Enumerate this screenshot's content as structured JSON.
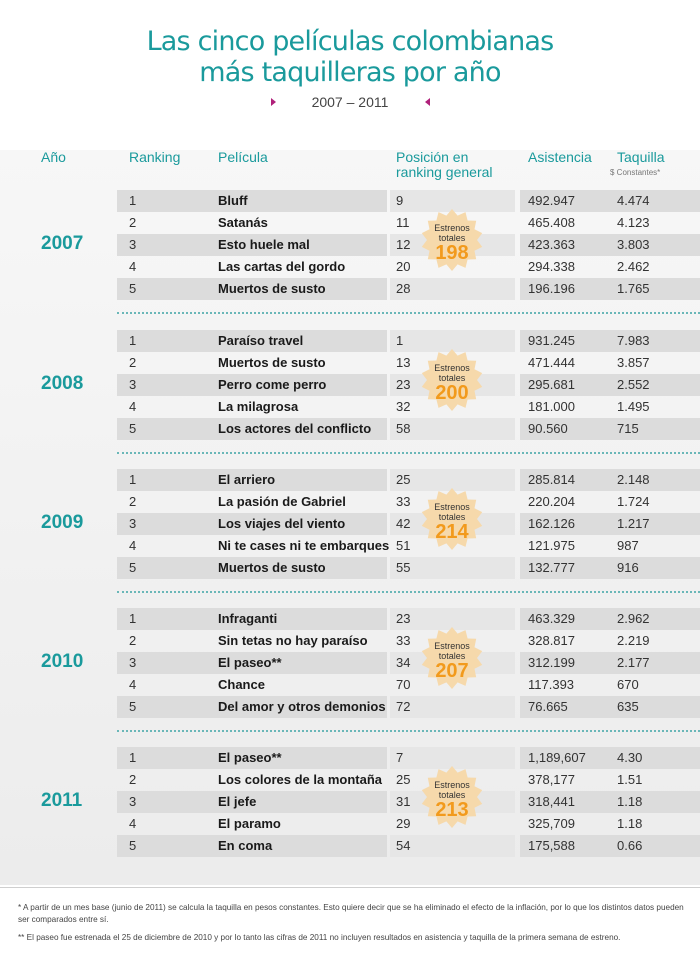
{
  "title_line1": "Las cinco películas colombianas",
  "title_line2": "más taquilleras por año",
  "subtitle": "2007 – 2011",
  "headers": {
    "year": "Año",
    "ranking": "Ranking",
    "movie": "Película",
    "position_1": "Posición en",
    "position_2": "ranking general",
    "attendance": "Asistencia",
    "box_office": "Taquilla",
    "box_office_sub": "$ Constantes*"
  },
  "badge_label_1": "Estrenos",
  "badge_label_2": "totales",
  "years": [
    {
      "year": "2007",
      "releases": "198",
      "rows": [
        {
          "rank": "1",
          "movie": "Bluff",
          "position": "9",
          "attendance": "492.947",
          "box_office": "4.474"
        },
        {
          "rank": "2",
          "movie": "Satanás",
          "position": "11",
          "attendance": "465.408",
          "box_office": "4.123"
        },
        {
          "rank": "3",
          "movie": "Esto huele mal",
          "position": "12",
          "attendance": "423.363",
          "box_office": "3.803"
        },
        {
          "rank": "4",
          "movie": "Las cartas del gordo",
          "position": "20",
          "attendance": "294.338",
          "box_office": "2.462"
        },
        {
          "rank": "5",
          "movie": "Muertos de susto",
          "position": "28",
          "attendance": "196.196",
          "box_office": "1.765"
        }
      ]
    },
    {
      "year": "2008",
      "releases": "200",
      "rows": [
        {
          "rank": "1",
          "movie": "Paraíso travel",
          "position": "1",
          "attendance": "931.245",
          "box_office": "7.983"
        },
        {
          "rank": "2",
          "movie": "Muertos de susto",
          "position": "13",
          "attendance": "471.444",
          "box_office": "3.857"
        },
        {
          "rank": "3",
          "movie": "Perro come perro",
          "position": "23",
          "attendance": "295.681",
          "box_office": "2.552"
        },
        {
          "rank": "4",
          "movie": "La milagrosa",
          "position": "32",
          "attendance": "181.000",
          "box_office": "1.495"
        },
        {
          "rank": "5",
          "movie": "Los actores del conflicto",
          "position": "58",
          "attendance": "90.560",
          "box_office": "715"
        }
      ]
    },
    {
      "year": "2009",
      "releases": "214",
      "rows": [
        {
          "rank": "1",
          "movie": "El arriero",
          "position": "25",
          "attendance": "285.814",
          "box_office": "2.148"
        },
        {
          "rank": "2",
          "movie": "La pasión de Gabriel",
          "position": "33",
          "attendance": "220.204",
          "box_office": "1.724"
        },
        {
          "rank": "3",
          "movie": "Los viajes del viento",
          "position": "42",
          "attendance": "162.126",
          "box_office": "1.217"
        },
        {
          "rank": "4",
          "movie": "Ni te cases ni te embarques",
          "position": "51",
          "attendance": "121.975",
          "box_office": "987"
        },
        {
          "rank": "5",
          "movie": "Muertos de susto",
          "position": "55",
          "attendance": "132.777",
          "box_office": "916"
        }
      ]
    },
    {
      "year": "2010",
      "releases": "207",
      "rows": [
        {
          "rank": "1",
          "movie": "Infraganti",
          "position": "23",
          "attendance": "463.329",
          "box_office": "2.962"
        },
        {
          "rank": "2",
          "movie": "Sin tetas no hay paraíso",
          "position": "33",
          "attendance": "328.817",
          "box_office": "2.219"
        },
        {
          "rank": "3",
          "movie": "El paseo**",
          "position": "34",
          "attendance": "312.199",
          "box_office": "2.177"
        },
        {
          "rank": "4",
          "movie": "Chance",
          "position": "70",
          "attendance": "117.393",
          "box_office": "670"
        },
        {
          "rank": "5",
          "movie": "Del amor y otros demonios",
          "position": "72",
          "attendance": "76.665",
          "box_office": "635"
        }
      ]
    },
    {
      "year": "2011",
      "releases": "213",
      "rows": [
        {
          "rank": "1",
          "movie": "El paseo**",
          "position": "7",
          "attendance": "1,189,607",
          "box_office": "4.30"
        },
        {
          "rank": "2",
          "movie": "Los colores de la montaña",
          "position": "25",
          "attendance": "378,177",
          "box_office": "1.51"
        },
        {
          "rank": "3",
          "movie": "El jefe",
          "position": "31",
          "attendance": "318,441",
          "box_office": "1.18"
        },
        {
          "rank": "4",
          "movie": "El paramo",
          "position": "29",
          "attendance": "325,709",
          "box_office": "1.18"
        },
        {
          "rank": "5",
          "movie": "En coma",
          "position": "54",
          "attendance": "175,588",
          "box_office": "0.66"
        }
      ]
    }
  ],
  "footnote_1": "* A partir de un mes base (junio de 2011) se calcula la taquilla en pesos constantes. Esto quiere decir que se ha eliminado el efecto de la inflación, por lo que los distintos datos pueden ser comparados entre sí.",
  "footnote_2": "** El paseo fue estrenada el 25 de diciembre de 2010 y por lo tanto las cifras de 2011 no incluyen resultados en asistencia y taquilla de la primera semana de estreno.",
  "colors": {
    "accent": "#1a9a9c",
    "marker": "#b0207a",
    "badge": "#f29a1c"
  }
}
